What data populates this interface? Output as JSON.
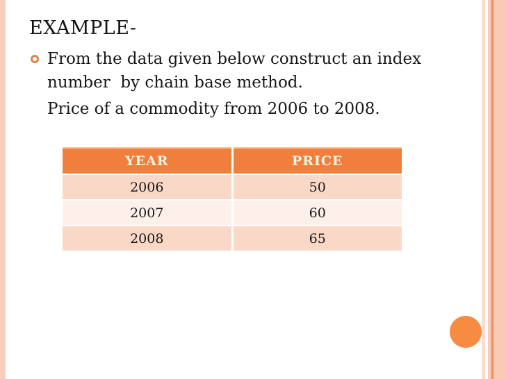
{
  "slide": {
    "title": "EXAMPLE-",
    "bullet": {
      "line1": "From the data given below construct an index",
      "line2": "number  by chain base method."
    },
    "subtext": "Price of a commodity from 2006 to 2008."
  },
  "table": {
    "headers": [
      "YEAR",
      "PRICE"
    ],
    "rows": [
      [
        "2006",
        "50"
      ],
      [
        "2007",
        "60"
      ],
      [
        "2008",
        "65"
      ]
    ]
  },
  "colors": {
    "header_orange": "#f07e3c",
    "circle_orange": "#f68b41",
    "bullet_ring_orange": "#e2824b",
    "row_dark_pink": "#fad8c7",
    "row_light_pink": "#fdefe9",
    "left_stripe_pink": "#f8cfbd",
    "right_band_pink": "#f9c9b4",
    "right_line_orange": "#e09165",
    "header_text_cream": "#fbf2e3",
    "body_text": "#171717"
  }
}
